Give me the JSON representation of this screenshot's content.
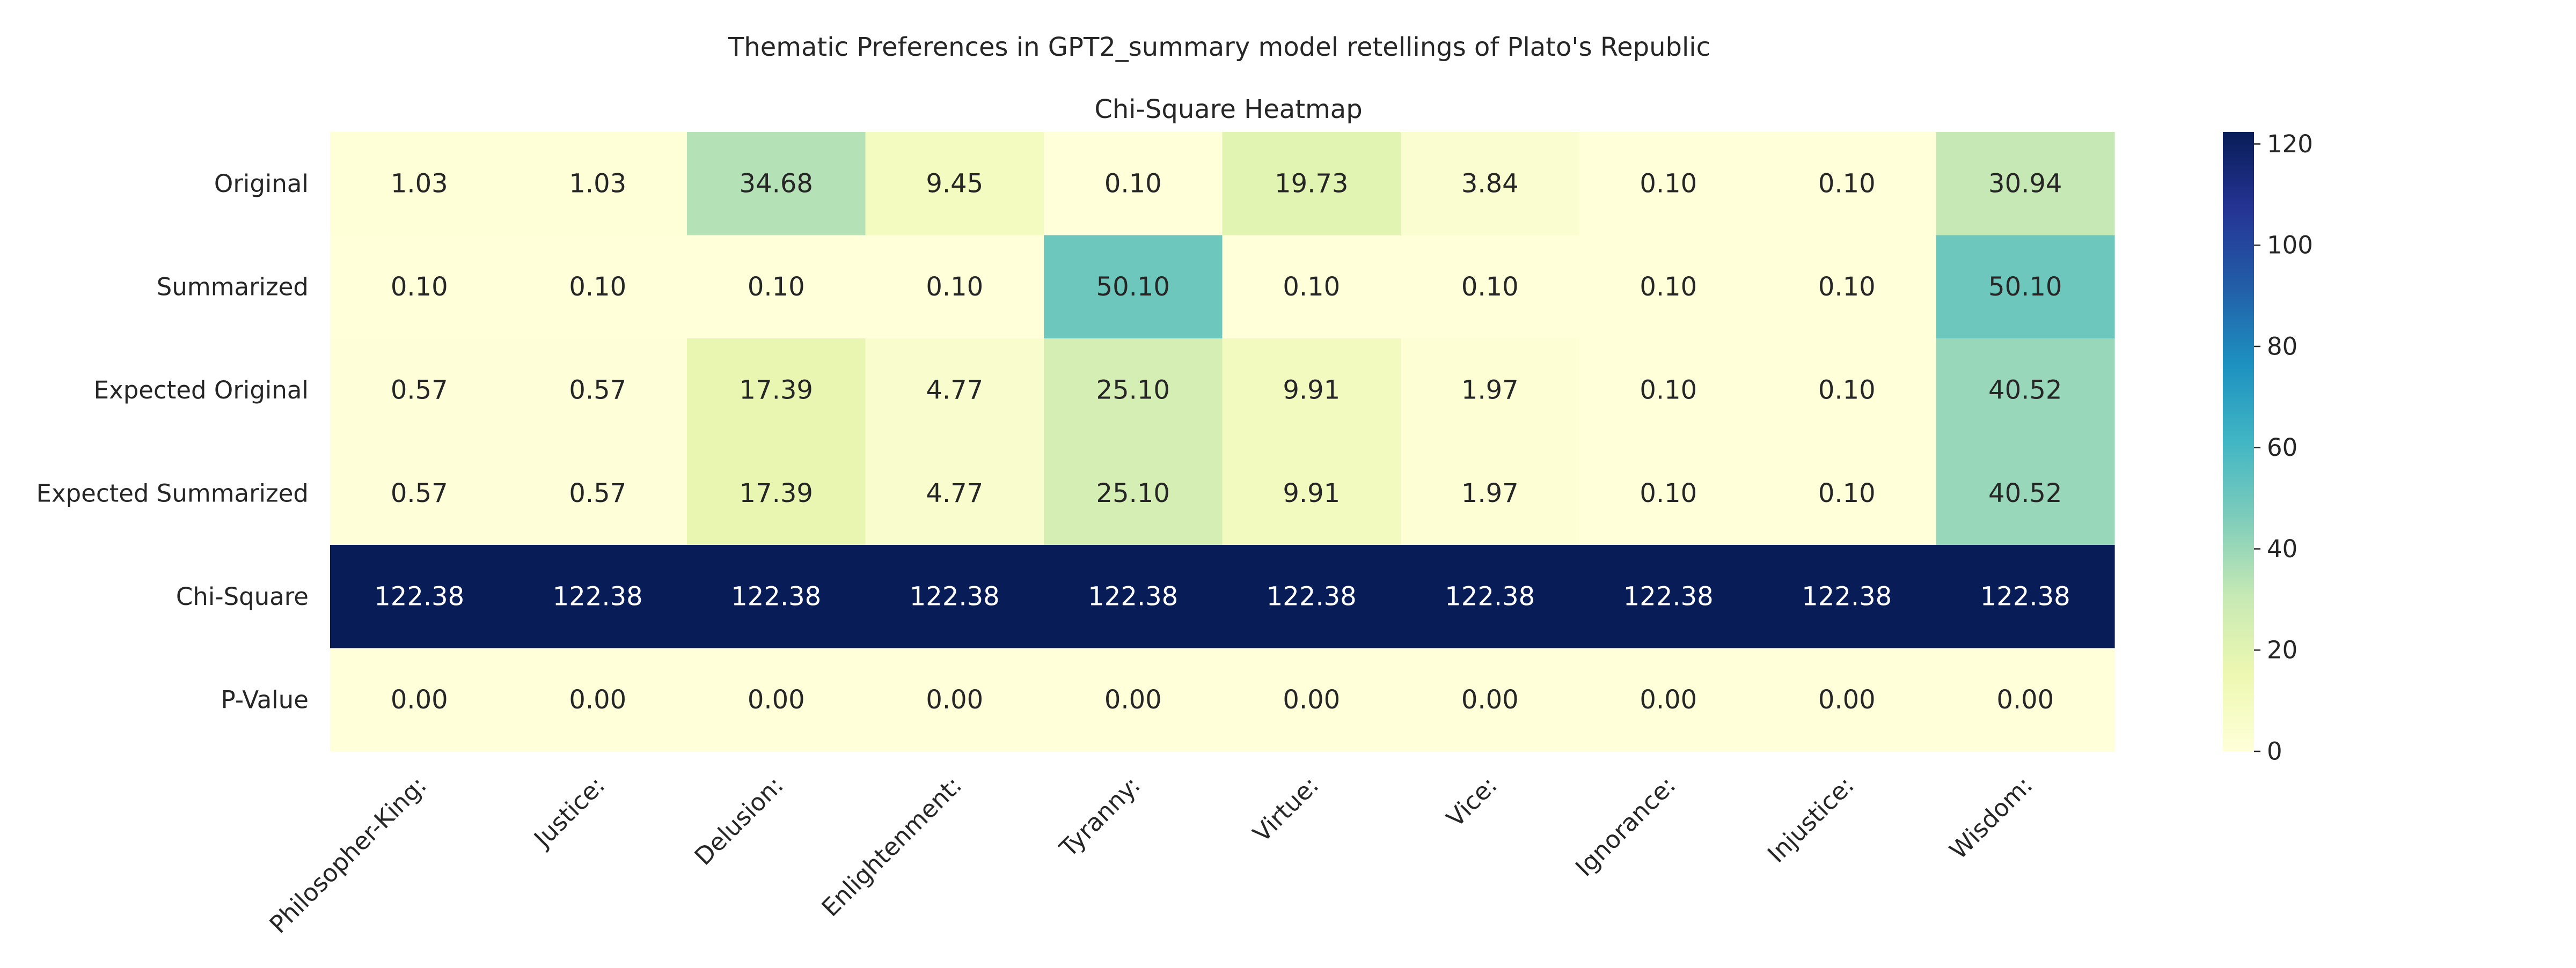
{
  "chart_data": {
    "type": "heatmap",
    "title": "Thematic Preferences in GPT2_summary model retellings of Plato's Republic",
    "subtitle": "Chi-Square Heatmap",
    "xlabel": "",
    "ylabel": "",
    "columns": [
      "Philosopher-King:",
      "Justice:",
      "Delusion:",
      "Enlightenment:",
      "Tyranny:",
      "Virtue:",
      "Vice:",
      "Ignorance:",
      "Injustice:",
      "Wisdom:"
    ],
    "rows": [
      "Original",
      "Summarized",
      "Expected Original",
      "Expected Summarized",
      "Chi-Square",
      "P-Value"
    ],
    "values": [
      [
        1.03,
        1.03,
        34.68,
        9.45,
        0.1,
        19.73,
        3.84,
        0.1,
        0.1,
        30.94
      ],
      [
        0.1,
        0.1,
        0.1,
        0.1,
        50.1,
        0.1,
        0.1,
        0.1,
        0.1,
        50.1
      ],
      [
        0.57,
        0.57,
        17.39,
        4.77,
        25.1,
        9.91,
        1.97,
        0.1,
        0.1,
        40.52
      ],
      [
        0.57,
        0.57,
        17.39,
        4.77,
        25.1,
        9.91,
        1.97,
        0.1,
        0.1,
        40.52
      ],
      [
        122.38,
        122.38,
        122.38,
        122.38,
        122.38,
        122.38,
        122.38,
        122.38,
        122.38,
        122.38
      ],
      [
        0.0,
        0.0,
        0.0,
        0.0,
        0.0,
        0.0,
        0.0,
        0.0,
        0.0,
        0.0
      ]
    ],
    "value_format": "2 decimals",
    "colorscale": "YlGnBu",
    "colorbar": {
      "range": [
        0,
        122.38
      ],
      "ticks": [
        0,
        20,
        40,
        60,
        80,
        100,
        120
      ],
      "tick_labels": [
        "0",
        "20",
        "40",
        "60",
        "80",
        "100",
        "120"
      ]
    },
    "grid": false,
    "legend": "colorbar-right"
  }
}
